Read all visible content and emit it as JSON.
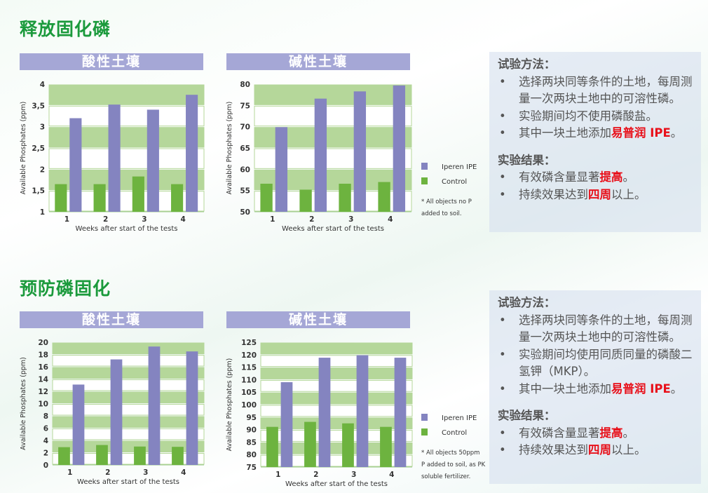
{
  "sections": [
    {
      "title": "释放固化磷",
      "headers": [
        "酸性土壤",
        "碱性土壤"
      ],
      "panel": {
        "method_heading": "试验方法：",
        "method_items": [
          {
            "pre": "选择两块同等条件的土地，每周测量一次两块土地中的可溶性磷。",
            "em": "",
            "post": ""
          },
          {
            "pre": "实验期间均不使用磷酸盐。",
            "em": "",
            "post": ""
          },
          {
            "pre": "其中一块土地添加",
            "em": "易普润 IPE",
            "post": "。"
          }
        ],
        "result_heading": "实验结果：",
        "result_items": [
          {
            "pre": "有效磷含量显著",
            "em": "提高",
            "post": "。"
          },
          {
            "pre": "持续效果达到",
            "em": "四周",
            "post": "以上。"
          }
        ]
      }
    },
    {
      "title": "预防磷固化",
      "headers": [
        "酸性土壤",
        "碱性土壤"
      ],
      "panel": {
        "method_heading": "试验方法：",
        "method_items": [
          {
            "pre": "选择两块同等条件的土地，每周测量一次两块土地中的可溶性磷。",
            "em": "",
            "post": ""
          },
          {
            "pre": "实验期间均使用同质同量的磷酸二氢钾（MKP）。",
            "em": "",
            "post": ""
          },
          {
            "pre": "其中一块土地添加",
            "em": "易普润 IPE",
            "post": "。"
          }
        ],
        "result_heading": "实验结果：",
        "result_items": [
          {
            "pre": "有效磷含量显著",
            "em": "提高",
            "post": "。"
          },
          {
            "pre": "持续效果达到",
            "em": "四周",
            "post": "以上。"
          }
        ]
      }
    }
  ],
  "colors": {
    "title_green": "#1b9a3c",
    "header": "#a5a7d6",
    "ipe": "#8484c0",
    "control": "#6db33f",
    "band": "#b5d79a",
    "highlight": "#e8101a"
  },
  "chart_data": [
    {
      "type": "bar",
      "categories": [
        "1",
        "2",
        "3",
        "4"
      ],
      "xlabel": "Weeks after start of the tests",
      "ylabel": "Available Phosphates (ppm)",
      "ylim": [
        1,
        4
      ],
      "yticks": [
        1,
        1.5,
        2,
        2.5,
        3,
        3.5,
        4
      ],
      "ytick_labels": [
        "1",
        "1,5",
        "2",
        "2,5",
        "3",
        "3,5",
        "4"
      ],
      "series": [
        {
          "name": "Control",
          "values": [
            1.65,
            1.65,
            1.83,
            1.65
          ]
        },
        {
          "name": "Iperen IPE",
          "values": [
            3.2,
            3.52,
            3.4,
            3.75
          ]
        }
      ],
      "legend": null,
      "note": null
    },
    {
      "type": "bar",
      "categories": [
        "1",
        "2",
        "3",
        "4"
      ],
      "xlabel": "Weeks after start of the tests",
      "ylabel": "Available Phosphates (ppm)",
      "ylim": [
        50,
        80
      ],
      "yticks": [
        50,
        55,
        60,
        65,
        70,
        75,
        80
      ],
      "ytick_labels": [
        "50",
        "55",
        "60",
        "65",
        "70",
        "75",
        "80"
      ],
      "series": [
        {
          "name": "Control",
          "values": [
            56.6,
            55.2,
            56.6,
            57.0
          ]
        },
        {
          "name": "Iperen IPE",
          "values": [
            69.9,
            76.6,
            78.3,
            79.7
          ]
        }
      ],
      "legend": {
        "position": "right",
        "entries": [
          "Iperen IPE",
          "Control"
        ]
      },
      "note": [
        "* All objects no P",
        "added to soil."
      ]
    },
    {
      "type": "bar",
      "categories": [
        "1",
        "2",
        "3",
        "4"
      ],
      "xlabel": "Weeks after start of the tests",
      "ylabel": "Available Phosphates (ppm)",
      "ylim": [
        0,
        20
      ],
      "yticks": [
        0,
        2,
        4,
        6,
        8,
        10,
        12,
        14,
        16,
        18,
        20
      ],
      "ytick_labels": [
        "0",
        "2",
        "4",
        "6",
        "8",
        "10",
        "12",
        "14",
        "16",
        "18",
        "20"
      ],
      "series": [
        {
          "name": "Control",
          "values": [
            2.9,
            3.25,
            3.0,
            2.95
          ]
        },
        {
          "name": "Iperen IPE",
          "values": [
            13.1,
            17.2,
            19.3,
            18.5
          ]
        }
      ],
      "legend": null,
      "note": null
    },
    {
      "type": "bar",
      "categories": [
        "1",
        "2",
        "3",
        "4"
      ],
      "xlabel": "Weeks after start of the tests",
      "ylabel": "Available Phosphates (ppm)",
      "ylim": [
        75,
        125
      ],
      "yticks": [
        75,
        80,
        85,
        90,
        95,
        100,
        105,
        110,
        115,
        120,
        125
      ],
      "ytick_labels": [
        "75",
        "80",
        "85",
        "90",
        "95",
        "100",
        "105",
        "110",
        "115",
        "120",
        "125"
      ],
      "series": [
        {
          "name": "Control",
          "values": [
            91.1,
            93.1,
            92.5,
            91.1
          ]
        },
        {
          "name": "Iperen IPE",
          "values": [
            109,
            118.8,
            119.8,
            118.8
          ]
        }
      ],
      "legend": {
        "position": "right",
        "entries": [
          "Iperen IPE",
          "Control"
        ]
      },
      "note": [
        "* All objects 50ppm",
        "P added to soil, as PK",
        "soluble fertilizer."
      ]
    }
  ]
}
